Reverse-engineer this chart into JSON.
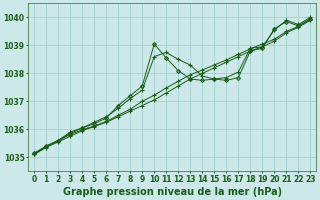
{
  "background_color": "#cce8e8",
  "grid_color": "#99cccc",
  "line_color": "#1a5c1a",
  "title": "Graphe pression niveau de la mer (hPa)",
  "xlim": [
    -0.5,
    23.5
  ],
  "ylim": [
    1034.5,
    1040.5
  ],
  "yticks": [
    1035,
    1036,
    1037,
    1038,
    1039,
    1040
  ],
  "xticks": [
    0,
    1,
    2,
    3,
    4,
    5,
    6,
    7,
    8,
    9,
    10,
    11,
    12,
    13,
    14,
    15,
    16,
    17,
    18,
    19,
    20,
    21,
    22,
    23
  ],
  "series": [
    {
      "x": [
        0,
        1,
        2,
        3,
        4,
        5,
        6,
        7,
        8,
        9,
        10,
        11,
        12,
        13,
        14,
        15,
        16,
        17,
        18,
        19,
        20,
        21,
        22,
        23
      ],
      "y": [
        1035.1,
        1035.35,
        1035.55,
        1035.75,
        1035.95,
        1036.1,
        1036.25,
        1036.45,
        1036.65,
        1036.85,
        1037.05,
        1037.3,
        1037.55,
        1037.8,
        1038.0,
        1038.2,
        1038.4,
        1038.6,
        1038.8,
        1038.95,
        1039.15,
        1039.45,
        1039.65,
        1039.9
      ],
      "marker": "+"
    },
    {
      "x": [
        0,
        1,
        2,
        3,
        4,
        5,
        6,
        7,
        8,
        9,
        10,
        11,
        12,
        13,
        14,
        15,
        16,
        17,
        18,
        19,
        20,
        21,
        22,
        23
      ],
      "y": [
        1035.15,
        1035.4,
        1035.6,
        1035.85,
        1036.05,
        1036.2,
        1036.4,
        1036.85,
        1037.2,
        1037.55,
        1039.05,
        1038.55,
        1038.1,
        1037.8,
        1037.75,
        1037.8,
        1037.75,
        1037.85,
        1038.8,
        1038.9,
        1039.6,
        1039.85,
        1039.7,
        1039.95
      ],
      "marker": "D"
    },
    {
      "x": [
        0,
        1,
        2,
        3,
        4,
        5,
        6,
        7,
        8,
        9,
        10,
        11,
        12,
        13,
        14,
        15,
        16,
        17,
        18,
        19,
        20,
        21,
        22,
        23
      ],
      "y": [
        1035.1,
        1035.4,
        1035.6,
        1035.9,
        1036.05,
        1036.25,
        1036.45,
        1036.75,
        1037.1,
        1037.4,
        1038.6,
        1038.75,
        1038.5,
        1038.3,
        1037.9,
        1037.8,
        1037.85,
        1038.05,
        1038.9,
        1038.95,
        1039.55,
        1039.9,
        1039.75,
        1040.0
      ],
      "marker": "+"
    },
    {
      "x": [
        0,
        1,
        2,
        3,
        4,
        5,
        6,
        7,
        8,
        9,
        10,
        11,
        12,
        13,
        14,
        15,
        16,
        17,
        18,
        19,
        20,
        21,
        22,
        23
      ],
      "y": [
        1035.1,
        1035.38,
        1035.58,
        1035.82,
        1035.98,
        1036.12,
        1036.28,
        1036.5,
        1036.72,
        1037.0,
        1037.22,
        1037.48,
        1037.72,
        1037.95,
        1038.12,
        1038.3,
        1038.48,
        1038.68,
        1038.88,
        1039.05,
        1039.22,
        1039.5,
        1039.68,
        1039.95
      ],
      "marker": "+"
    }
  ],
  "title_fontsize": 7,
  "tick_fontsize": 5.5
}
